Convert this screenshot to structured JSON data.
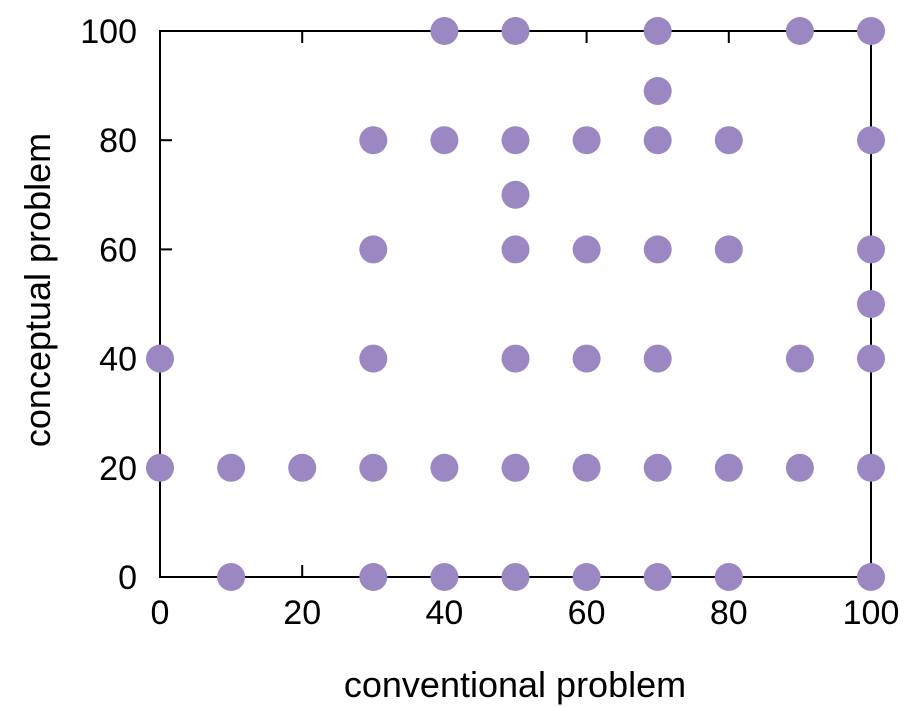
{
  "chart_data": {
    "type": "scatter",
    "title": "",
    "xlabel": "conventional problem",
    "ylabel": "conceptual problem",
    "xlim": [
      0,
      100
    ],
    "ylim": [
      0,
      100
    ],
    "xticks": [
      "0",
      "20",
      "40",
      "60",
      "80",
      "100"
    ],
    "yticks": [
      "0",
      "20",
      "40",
      "60",
      "80",
      "100"
    ],
    "grid": false,
    "legend": "none",
    "marker_color": "#9b87c2",
    "points": [
      [
        40,
        100
      ],
      [
        50,
        100
      ],
      [
        70,
        100
      ],
      [
        90,
        100
      ],
      [
        100,
        100
      ],
      [
        70,
        89
      ],
      [
        30,
        80
      ],
      [
        40,
        80
      ],
      [
        50,
        80
      ],
      [
        60,
        80
      ],
      [
        70,
        80
      ],
      [
        80,
        80
      ],
      [
        100,
        80
      ],
      [
        50,
        70
      ],
      [
        30,
        60
      ],
      [
        50,
        60
      ],
      [
        60,
        60
      ],
      [
        70,
        60
      ],
      [
        80,
        60
      ],
      [
        100,
        60
      ],
      [
        100,
        50
      ],
      [
        0,
        40
      ],
      [
        30,
        40
      ],
      [
        50,
        40
      ],
      [
        60,
        40
      ],
      [
        70,
        40
      ],
      [
        90,
        40
      ],
      [
        100,
        40
      ],
      [
        0,
        20
      ],
      [
        10,
        20
      ],
      [
        20,
        20
      ],
      [
        30,
        20
      ],
      [
        40,
        20
      ],
      [
        50,
        20
      ],
      [
        60,
        20
      ],
      [
        70,
        20
      ],
      [
        80,
        20
      ],
      [
        90,
        20
      ],
      [
        100,
        20
      ],
      [
        10,
        0
      ],
      [
        30,
        0
      ],
      [
        40,
        0
      ],
      [
        50,
        0
      ],
      [
        60,
        0
      ],
      [
        70,
        0
      ],
      [
        80,
        0
      ],
      [
        100,
        0
      ]
    ]
  }
}
